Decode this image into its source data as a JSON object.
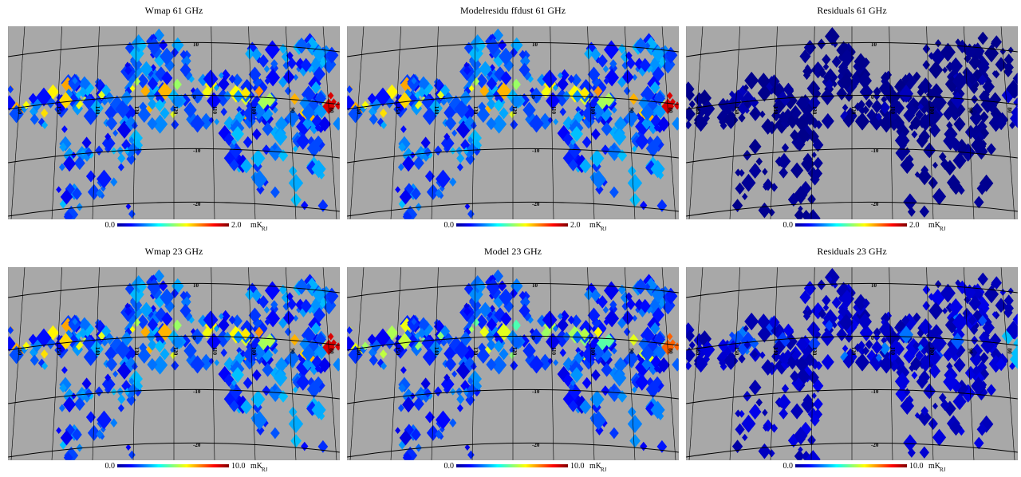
{
  "panels": [
    {
      "title": "Wmap 61 GHz",
      "colorbar_min": "0.0",
      "colorbar_max": "2.0",
      "unit": "mK",
      "unit_sub": "RJ"
    },
    {
      "title": "Modelresidu ffdust 61 GHz",
      "colorbar_min": "0.0",
      "colorbar_max": "2.0",
      "unit": "mK",
      "unit_sub": "RJ"
    },
    {
      "title": "Residuals 61 GHz",
      "colorbar_min": "0.0",
      "colorbar_max": "2.0",
      "unit": "mK",
      "unit_sub": "RJ"
    },
    {
      "title": "Wmap 23 GHz",
      "colorbar_min": "0.0",
      "colorbar_max": "10.0",
      "unit": "mK",
      "unit_sub": "RJ"
    },
    {
      "title": "Model 23 GHz",
      "colorbar_min": "0.0",
      "colorbar_max": "10.0",
      "unit": "mK",
      "unit_sub": "RJ"
    },
    {
      "title": "Residuals 23 GHz",
      "colorbar_min": "0.0",
      "colorbar_max": "10.0",
      "unit": "mK",
      "unit_sub": "RJ"
    }
  ],
  "grid": {
    "lat_labels": [
      "10",
      "0",
      "-10",
      "-20"
    ],
    "lon_labels": [
      "160",
      "150",
      "140",
      "130",
      "120",
      "110",
      "100",
      "90",
      "80"
    ]
  }
}
